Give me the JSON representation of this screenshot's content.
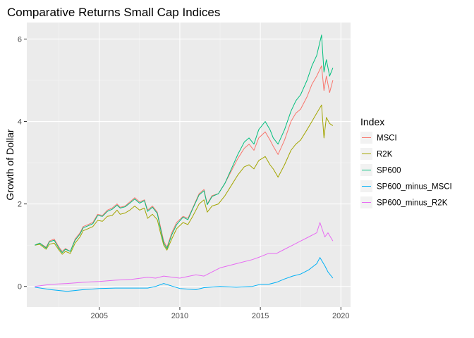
{
  "chart_data": {
    "type": "line",
    "title": "Comparative Returns Small Cap Indices",
    "xlabel": "",
    "ylabel": "Growth of Dollar",
    "xlim": [
      2000.5,
      2020.6
    ],
    "ylim": [
      -0.5,
      6.4
    ],
    "x_ticks": [
      2005,
      2010,
      2015,
      2020
    ],
    "y_ticks": [
      0,
      2,
      4,
      6
    ],
    "grid": true,
    "legend": {
      "title": "Index",
      "placement": "right"
    },
    "series": [
      {
        "name": "MSCI",
        "color": "#F8766D",
        "x": [
          2001.0,
          2001.3,
          2001.7,
          2001.9,
          2002.2,
          2002.5,
          2002.7,
          2002.9,
          2003.2,
          2003.5,
          2003.8,
          2004.0,
          2004.3,
          2004.6,
          2004.9,
          2005.2,
          2005.5,
          2005.8,
          2006.1,
          2006.3,
          2006.6,
          2006.9,
          2007.2,
          2007.5,
          2007.8,
          2008.0,
          2008.3,
          2008.6,
          2008.8,
          2009.0,
          2009.2,
          2009.5,
          2009.8,
          2010.2,
          2010.5,
          2010.8,
          2011.2,
          2011.5,
          2011.7,
          2012.0,
          2012.4,
          2012.8,
          2013.2,
          2013.6,
          2014.0,
          2014.3,
          2014.6,
          2014.9,
          2015.3,
          2015.6,
          2015.8,
          2016.1,
          2016.5,
          2016.9,
          2017.2,
          2017.5,
          2017.9,
          2018.2,
          2018.5,
          2018.8,
          2018.95,
          2019.1,
          2019.3,
          2019.5
        ],
        "values": [
          1.0,
          1.05,
          0.95,
          1.1,
          1.15,
          0.95,
          0.85,
          0.92,
          0.85,
          1.15,
          1.3,
          1.45,
          1.5,
          1.55,
          1.75,
          1.72,
          1.85,
          1.9,
          2.0,
          1.92,
          1.95,
          2.05,
          2.15,
          2.05,
          2.1,
          1.85,
          1.95,
          1.8,
          1.45,
          1.1,
          0.95,
          1.3,
          1.55,
          1.7,
          1.65,
          1.9,
          2.25,
          2.35,
          2.0,
          2.2,
          2.25,
          2.5,
          2.8,
          3.1,
          3.35,
          3.45,
          3.3,
          3.6,
          3.75,
          3.55,
          3.4,
          3.2,
          3.55,
          4.0,
          4.2,
          4.3,
          4.6,
          4.9,
          5.1,
          5.35,
          4.75,
          5.1,
          4.7,
          5.0
        ]
      },
      {
        "name": "R2K",
        "color": "#A3A500",
        "x": [
          2001.0,
          2001.3,
          2001.7,
          2001.9,
          2002.2,
          2002.5,
          2002.7,
          2002.9,
          2003.2,
          2003.5,
          2003.8,
          2004.0,
          2004.3,
          2004.6,
          2004.9,
          2005.2,
          2005.5,
          2005.8,
          2006.1,
          2006.3,
          2006.6,
          2006.9,
          2007.2,
          2007.5,
          2007.8,
          2008.0,
          2008.3,
          2008.6,
          2008.8,
          2009.0,
          2009.2,
          2009.5,
          2009.8,
          2010.2,
          2010.5,
          2010.8,
          2011.2,
          2011.5,
          2011.7,
          2012.0,
          2012.4,
          2012.8,
          2013.2,
          2013.6,
          2014.0,
          2014.3,
          2014.6,
          2014.9,
          2015.3,
          2015.6,
          2015.8,
          2016.1,
          2016.5,
          2016.9,
          2017.2,
          2017.5,
          2017.9,
          2018.2,
          2018.5,
          2018.8,
          2018.95,
          2019.1,
          2019.3,
          2019.5
        ],
        "values": [
          1.0,
          1.02,
          0.9,
          1.02,
          1.05,
          0.88,
          0.78,
          0.85,
          0.8,
          1.05,
          1.2,
          1.35,
          1.4,
          1.45,
          1.6,
          1.58,
          1.7,
          1.72,
          1.85,
          1.75,
          1.78,
          1.85,
          1.95,
          1.85,
          1.9,
          1.65,
          1.75,
          1.62,
          1.3,
          1.0,
          0.88,
          1.15,
          1.4,
          1.55,
          1.5,
          1.7,
          2.0,
          2.1,
          1.8,
          1.95,
          2.0,
          2.2,
          2.45,
          2.7,
          2.9,
          2.95,
          2.85,
          3.05,
          3.15,
          2.95,
          2.85,
          2.65,
          2.95,
          3.3,
          3.45,
          3.55,
          3.8,
          4.0,
          4.2,
          4.4,
          3.6,
          4.1,
          3.95,
          3.9
        ]
      },
      {
        "name": "SP600",
        "color": "#00BF7D",
        "x": [
          2001.0,
          2001.3,
          2001.7,
          2001.9,
          2002.2,
          2002.5,
          2002.7,
          2002.9,
          2003.2,
          2003.5,
          2003.8,
          2004.0,
          2004.3,
          2004.6,
          2004.9,
          2005.2,
          2005.5,
          2005.8,
          2006.1,
          2006.3,
          2006.6,
          2006.9,
          2007.2,
          2007.5,
          2007.8,
          2008.0,
          2008.3,
          2008.6,
          2008.8,
          2009.0,
          2009.2,
          2009.5,
          2009.8,
          2010.2,
          2010.5,
          2010.8,
          2011.2,
          2011.5,
          2011.7,
          2012.0,
          2012.4,
          2012.8,
          2013.2,
          2013.6,
          2014.0,
          2014.3,
          2014.6,
          2014.9,
          2015.3,
          2015.6,
          2015.8,
          2016.1,
          2016.5,
          2016.9,
          2017.2,
          2017.5,
          2017.9,
          2018.2,
          2018.5,
          2018.8,
          2018.95,
          2019.1,
          2019.3,
          2019.5
        ],
        "values": [
          1.0,
          1.05,
          0.93,
          1.08,
          1.12,
          0.92,
          0.82,
          0.9,
          0.85,
          1.12,
          1.27,
          1.42,
          1.47,
          1.52,
          1.72,
          1.7,
          1.82,
          1.87,
          1.97,
          1.9,
          1.93,
          2.02,
          2.12,
          2.02,
          2.08,
          1.82,
          1.92,
          1.77,
          1.4,
          1.05,
          0.92,
          1.25,
          1.5,
          1.68,
          1.62,
          1.88,
          2.22,
          2.32,
          1.98,
          2.18,
          2.25,
          2.5,
          2.85,
          3.2,
          3.5,
          3.6,
          3.45,
          3.8,
          4.0,
          3.8,
          3.6,
          3.45,
          3.8,
          4.25,
          4.5,
          4.65,
          5.0,
          5.35,
          5.6,
          6.1,
          5.2,
          5.5,
          5.1,
          5.3
        ]
      },
      {
        "name": "SP600_minus_MSCI",
        "color": "#00B0F6",
        "x": [
          2001.0,
          2002.0,
          2003.0,
          2004.0,
          2005.0,
          2006.0,
          2007.0,
          2008.0,
          2008.5,
          2009.0,
          2010.0,
          2011.0,
          2011.5,
          2012.5,
          2013.5,
          2014.5,
          2015.0,
          2015.5,
          2016.0,
          2016.5,
          2017.0,
          2017.5,
          2018.0,
          2018.5,
          2018.7,
          2019.0,
          2019.2,
          2019.5
        ],
        "values": [
          -0.02,
          -0.08,
          -0.12,
          -0.08,
          -0.05,
          -0.04,
          -0.04,
          -0.04,
          0.0,
          0.07,
          -0.05,
          -0.08,
          -0.03,
          0.0,
          -0.02,
          0.0,
          0.05,
          0.05,
          0.1,
          0.18,
          0.25,
          0.3,
          0.4,
          0.55,
          0.7,
          0.5,
          0.35,
          0.2
        ]
      },
      {
        "name": "SP600_minus_R2K",
        "color": "#E76BF3",
        "x": [
          2001.0,
          2002.0,
          2003.0,
          2004.0,
          2005.0,
          2006.0,
          2007.0,
          2008.0,
          2008.5,
          2009.0,
          2010.0,
          2011.0,
          2011.5,
          2012.5,
          2013.5,
          2014.5,
          2015.0,
          2015.5,
          2016.0,
          2016.5,
          2017.0,
          2017.5,
          2018.0,
          2018.5,
          2018.7,
          2019.0,
          2019.2,
          2019.5
        ],
        "values": [
          0.0,
          0.05,
          0.07,
          0.1,
          0.12,
          0.15,
          0.17,
          0.22,
          0.2,
          0.25,
          0.2,
          0.28,
          0.25,
          0.45,
          0.55,
          0.65,
          0.72,
          0.8,
          0.8,
          0.9,
          1.0,
          1.1,
          1.2,
          1.3,
          1.55,
          1.2,
          1.3,
          1.1
        ]
      }
    ]
  }
}
